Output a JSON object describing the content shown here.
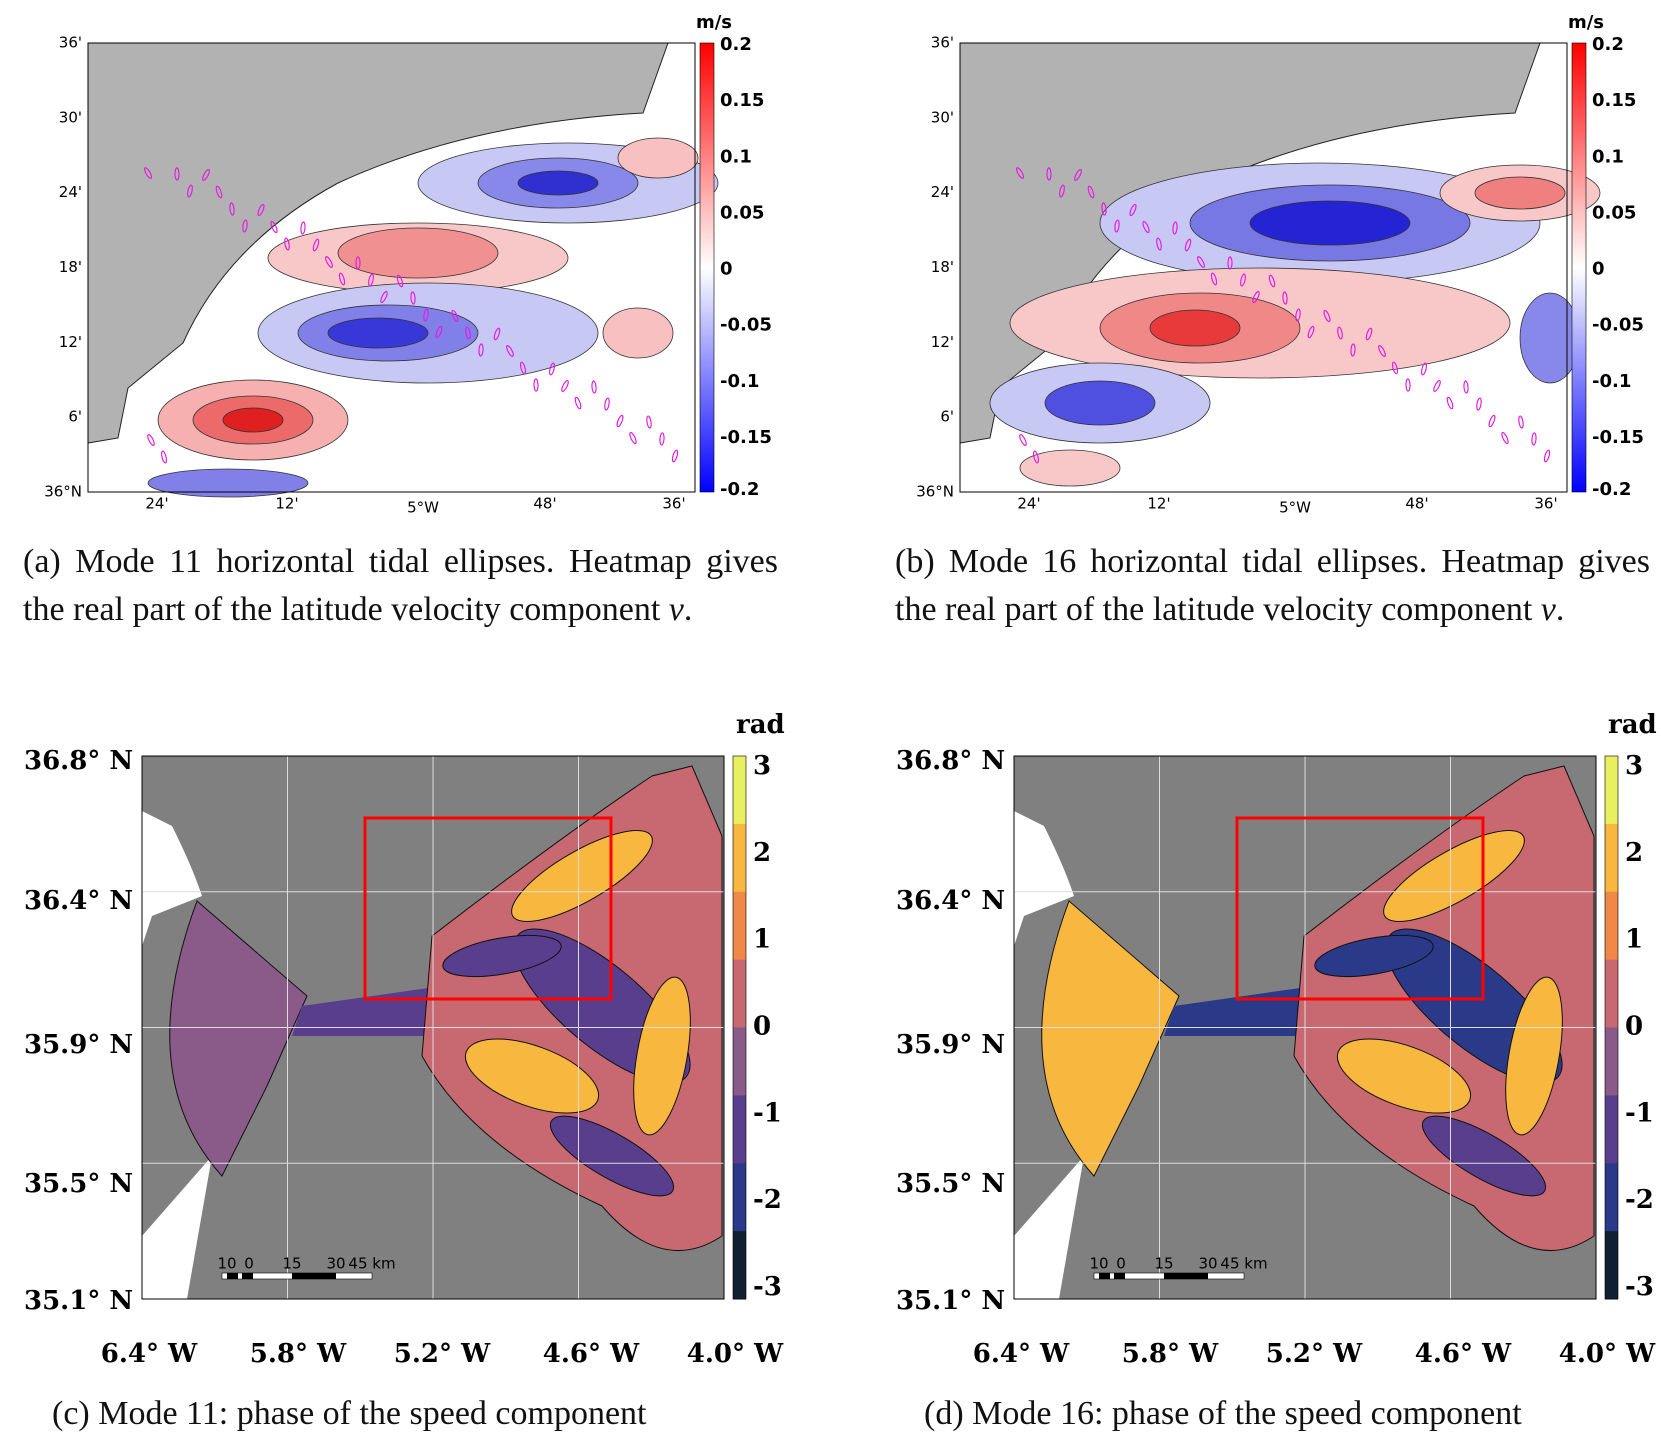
{
  "panels": [
    {
      "colorbar_unit": "m/s",
      "colorbar_ticks": [
        "0.2",
        "0.15",
        "0.1",
        "0.05",
        "0",
        "-0.05",
        "-0.1",
        "-0.15",
        "-0.2"
      ],
      "y_labels": [
        "36'",
        "30'",
        "24'",
        "18'",
        "12'",
        "6'",
        "36°N"
      ],
      "x_labels": [
        "24'",
        "12'",
        "5°W",
        "48'",
        "36'"
      ],
      "caption": [
        "(a) Mode 11 horizontal tidal ellipses. Heatmap gives the real part of the latitude velocity component ",
        "v",
        "."
      ]
    },
    {
      "colorbar_unit": "m/s",
      "colorbar_ticks": [
        "0.2",
        "0.15",
        "0.1",
        "0.05",
        "0",
        "-0.05",
        "-0.1",
        "-0.15",
        "-0.2"
      ],
      "y_labels": [
        "36'",
        "30'",
        "24'",
        "18'",
        "12'",
        "6'",
        "36°N"
      ],
      "x_labels": [
        "24'",
        "12'",
        "5°W",
        "48'",
        "36'"
      ],
      "caption": [
        "(b) Mode 16 horizontal tidal ellipses. Heatmap gives the real part of the latitude velocity component ",
        "v",
        "."
      ]
    },
    {
      "colorbar_unit": "rad",
      "colorbar_ticks": [
        "3",
        "2",
        "1",
        "0",
        "-1",
        "-2",
        "-3"
      ],
      "y_labels": [
        "36.8° N",
        "36.4° N",
        "35.9° N",
        "35.5° N",
        "35.1° N"
      ],
      "x_labels": [
        "6.4° W",
        "5.8° W",
        "5.2° W",
        "4.6° W",
        "4.0° W"
      ],
      "scale_bar": [
        "10",
        "0",
        "15",
        "30",
        "45 km"
      ],
      "caption": [
        "(c) Mode 11: phase of the speed component"
      ]
    },
    {
      "colorbar_unit": "rad",
      "colorbar_ticks": [
        "3",
        "2",
        "1",
        "0",
        "-1",
        "-2",
        "-3"
      ],
      "y_labels": [
        "36.8° N",
        "36.4° N",
        "35.9° N",
        "35.5° N",
        "35.1° N"
      ],
      "x_labels": [
        "6.4° W",
        "5.8° W",
        "5.2° W",
        "4.6° W",
        "4.0° W"
      ],
      "scale_bar": [
        "10",
        "0",
        "15",
        "30",
        "45 km"
      ],
      "caption": [
        "(d) Mode 16: phase of the speed component"
      ]
    }
  ]
}
